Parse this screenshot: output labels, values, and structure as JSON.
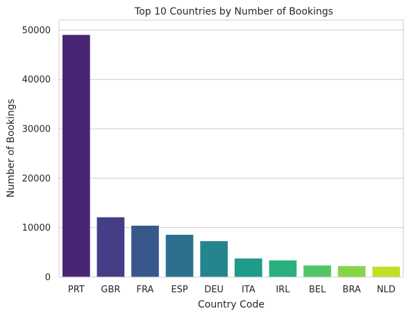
{
  "chart_data": {
    "type": "bar",
    "title": "Top 10 Countries by Number of Bookings",
    "xlabel": "Country Code",
    "ylabel": "Number of Bookings",
    "categories": [
      "PRT",
      "GBR",
      "FRA",
      "ESP",
      "DEU",
      "ITA",
      "IRL",
      "BEL",
      "BRA",
      "NLD"
    ],
    "values": [
      49000,
      12100,
      10400,
      8550,
      7270,
      3760,
      3370,
      2340,
      2220,
      2100
    ],
    "ylim": [
      0,
      52000
    ],
    "yticks": [
      0,
      10000,
      20000,
      30000,
      40000,
      50000
    ],
    "grid": true,
    "colors": [
      "#482575",
      "#433e85",
      "#38588c",
      "#2d708e",
      "#25858e",
      "#1e9b8a",
      "#2ab07f",
      "#52c569",
      "#86d549",
      "#c2df23"
    ]
  }
}
